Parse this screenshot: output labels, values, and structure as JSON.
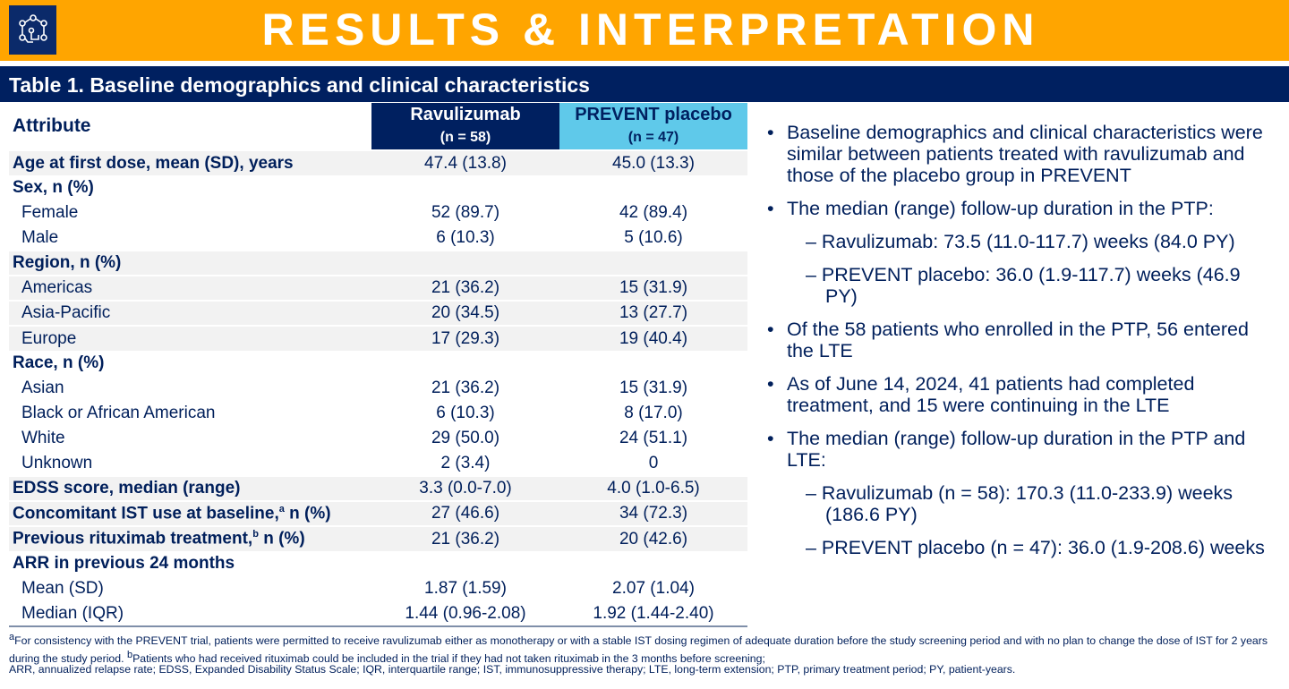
{
  "header": {
    "title": "RESULTS & INTERPRETATION",
    "logo_icon": "network-touch-icon"
  },
  "table": {
    "title": "Table 1. Baseline demographics and clinical characteristics",
    "col_attr": "Attribute",
    "col_rav": "Ravulizumab",
    "col_rav_n": "(n = 58)",
    "col_pla": "PREVENT placebo",
    "col_pla_n": "(n = 47)",
    "rows": [
      {
        "label": "Age at first dose, mean (SD), years",
        "rav": "47.4 (13.8)",
        "pla": "45.0 (13.3)"
      },
      {
        "label": "Sex, n (%)",
        "rav": "",
        "pla": ""
      },
      {
        "label": "Female",
        "rav": "52 (89.7)",
        "pla": "42 (89.4)"
      },
      {
        "label": "Male",
        "rav": "6 (10.3)",
        "pla": "5 (10.6)"
      },
      {
        "label": "Region, n (%)",
        "rav": "",
        "pla": ""
      },
      {
        "label": "Americas",
        "rav": "21 (36.2)",
        "pla": "15 (31.9)"
      },
      {
        "label": "Asia-Pacific",
        "rav": "20 (34.5)",
        "pla": "13 (27.7)"
      },
      {
        "label": "Europe",
        "rav": "17 (29.3)",
        "pla": "19 (40.4)"
      },
      {
        "label": "Race, n (%)",
        "rav": "",
        "pla": ""
      },
      {
        "label": "Asian",
        "rav": "21 (36.2)",
        "pla": "15 (31.9)"
      },
      {
        "label": "Black or African American",
        "rav": "6 (10.3)",
        "pla": "8 (17.0)"
      },
      {
        "label": "White",
        "rav": "29 (50.0)",
        "pla": "24 (51.1)"
      },
      {
        "label": "Unknown",
        "rav": "2 (3.4)",
        "pla": "0"
      },
      {
        "label": "EDSS score, median (range)",
        "rav": "3.3 (0.0-7.0)",
        "pla": "4.0 (1.0-6.5)"
      },
      {
        "label": "Concomitant IST use at baseline,",
        "sup": "a",
        "label2": " n (%)",
        "rav": "27 (46.6)",
        "pla": "34 (72.3)"
      },
      {
        "label": "Previous rituximab treatment,",
        "sup": "b",
        "label2": " n (%)",
        "rav": "21 (36.2)",
        "pla": "20 (42.6)"
      },
      {
        "label": "ARR in previous 24 months",
        "rav": "",
        "pla": ""
      },
      {
        "label": "Mean (SD)",
        "rav": "1.87 (1.59)",
        "pla": "2.07 (1.04)"
      },
      {
        "label": "Median (IQR)",
        "rav": "1.44 (0.96-2.08)",
        "pla": "1.92 (1.44-2.40)"
      }
    ]
  },
  "bullets": [
    "Baseline demographics and clinical characteristics were similar between patients treated with ravulizumab and those of the placebo group in PREVENT",
    "The median (range) follow-up duration in the PTP:",
    "– Ravulizumab: 73.5 (11.0-117.7) weeks (84.0 PY)",
    "– PREVENT placebo: 36.0 (1.9-117.7) weeks (46.9 PY)",
    "Of the 58 patients who enrolled in the PTP, 56 entered the LTE",
    "As of June 14, 2024, 41 patients had completed treatment, and 15 were continuing in the LTE",
    "The median (range) follow-up duration in the PTP and LTE:",
    "– Ravulizumab (n = 58): 170.3 (11.0-233.9) weeks (186.6 PY)",
    "– PREVENT placebo (n = 47): 36.0 (1.9-208.6) weeks"
  ],
  "footnotes": {
    "a_mark": "a",
    "a": "For consistency with the PREVENT trial, patients were permitted to receive ravulizumab either as monotherapy or with a stable IST dosing regimen of adequate duration before the study screening period and with no plan to change the dose of IST for 2 years during the study period. ",
    "b_mark": "b",
    "b": "Patients who had received rituximab could be included in the trial if they had not taken rituximab in the 3 months before screening;",
    "abbrev": "ARR, annualized relapse rate; EDSS, Expanded Disability Status Scale; IQR, interquartile range; IST, immunosuppressive therapy; LTE, long-term extension; PTP, primary treatment period; PY, patient-years."
  }
}
